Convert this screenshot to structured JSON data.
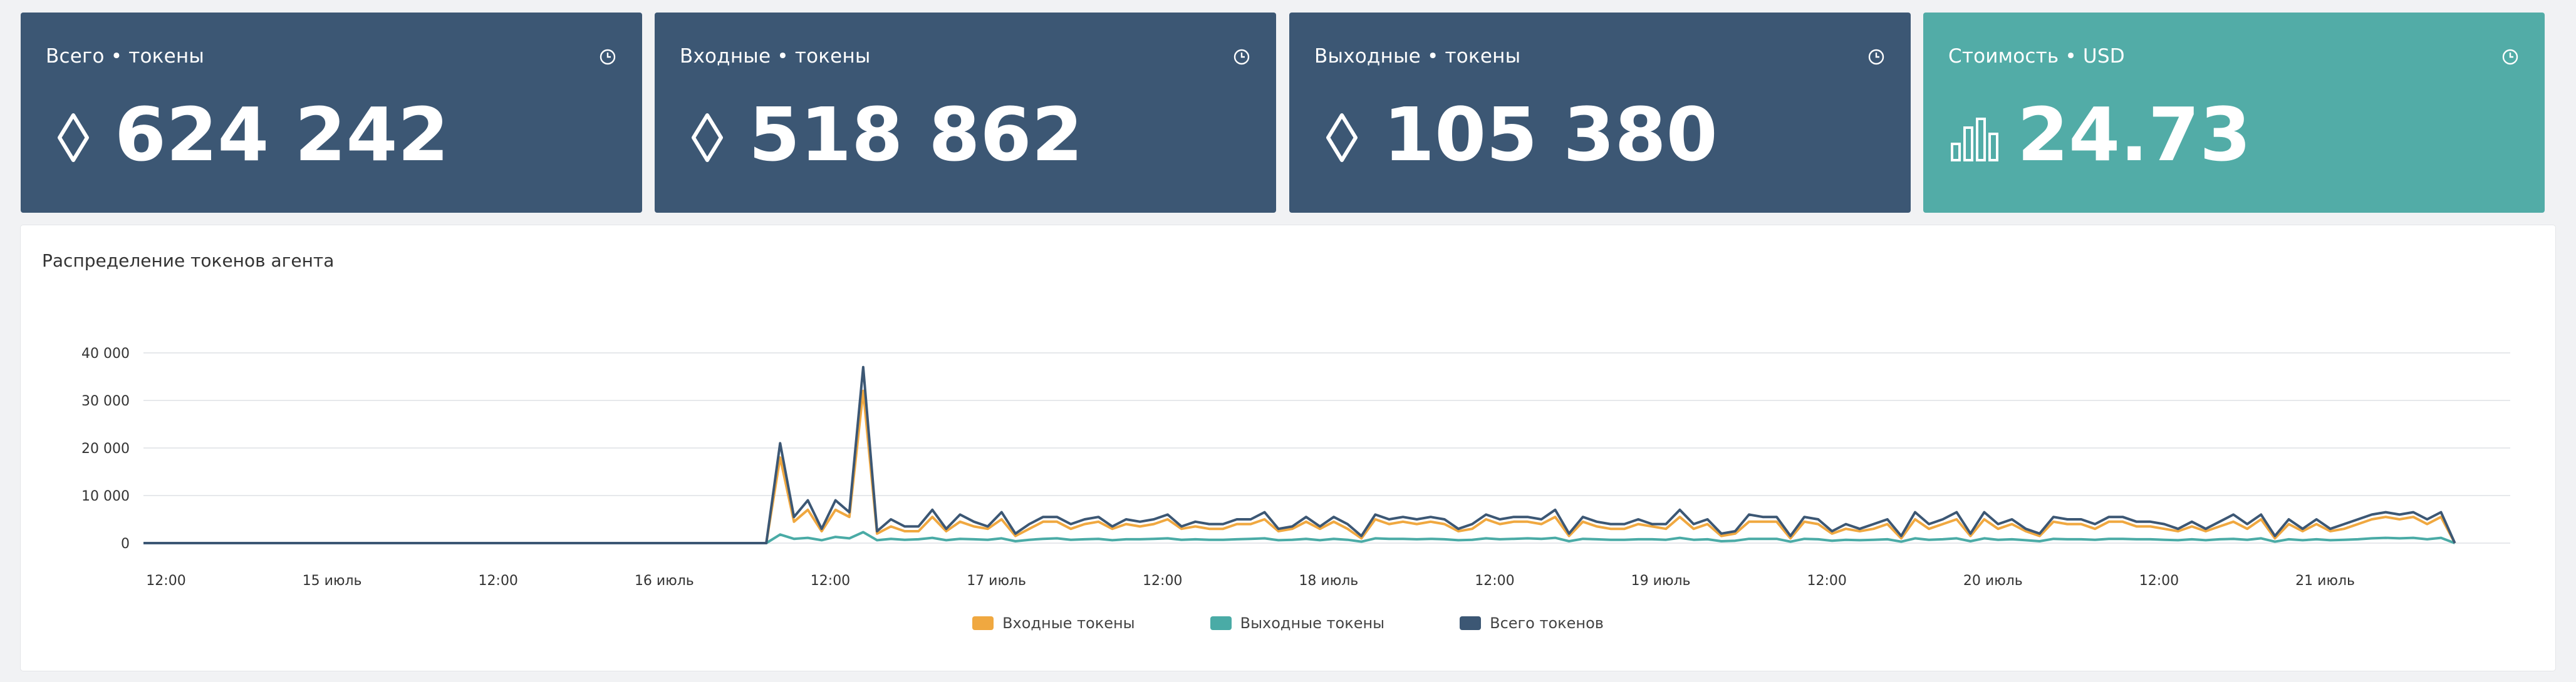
{
  "cards": [
    {
      "title": "Всего • токены",
      "value": "624 242",
      "icon": "diamond-icon",
      "theme": "dark"
    },
    {
      "title": "Входные • токены",
      "value": "518 862",
      "icon": "diamond-icon",
      "theme": "dark"
    },
    {
      "title": "Выходные • токены",
      "value": "105 380",
      "icon": "diamond-icon",
      "theme": "dark"
    },
    {
      "title": "Стоимость • USD",
      "value": "24.73",
      "icon": "bar-chart-icon",
      "theme": "teal"
    }
  ],
  "colors": {
    "card_dark": "#3c5774",
    "card_teal": "#52aca7",
    "input": "#f0a840",
    "output": "#4aaba6",
    "total": "#3c5774"
  },
  "chart_data": {
    "type": "line",
    "title": "Распределение токенов агента",
    "ylim": [
      0,
      40000
    ],
    "y_ticks": [
      "0",
      "10 000",
      "20 000",
      "30 000",
      "40 000"
    ],
    "x_ticks": [
      "12:00",
      "15 июль",
      "12:00",
      "16 июль",
      "12:00",
      "17 июль",
      "12:00",
      "18 июль",
      "12:00",
      "19 июль",
      "12:00",
      "20 июль",
      "12:00",
      "21 июль"
    ],
    "grid": true,
    "legend_position": "bottom",
    "x_hours": [
      0,
      45,
      46,
      47,
      48,
      49,
      50,
      51,
      52,
      53,
      54,
      55,
      56,
      57,
      58,
      59,
      60,
      61,
      62,
      63,
      64,
      65,
      66,
      67,
      68,
      69,
      70,
      71,
      72,
      73,
      74,
      75,
      76,
      77,
      78,
      79,
      80,
      81,
      82,
      83,
      84,
      85,
      86,
      87,
      88,
      89,
      90,
      91,
      92,
      93,
      94,
      95,
      96,
      97,
      98,
      99,
      100,
      101,
      102,
      103,
      104,
      105,
      106,
      107,
      108,
      109,
      110,
      111,
      112,
      113,
      114,
      115,
      116,
      117,
      118,
      119,
      120,
      121,
      122,
      123,
      124,
      125,
      126,
      127,
      128,
      129,
      130,
      131,
      132,
      133,
      134,
      135,
      136,
      137,
      138,
      139,
      140,
      141,
      142,
      143,
      144,
      145,
      146,
      147,
      148,
      149,
      150,
      151,
      152,
      153,
      154,
      155,
      156,
      157,
      158,
      159,
      160,
      161,
      162,
      163,
      164,
      165,
      166,
      167
    ],
    "series": [
      {
        "name": "Входные токены",
        "values": [
          0,
          0,
          18000,
          4500,
          7000,
          2500,
          7000,
          5500,
          32000,
          2000,
          3500,
          2500,
          2500,
          5500,
          2500,
          4500,
          3500,
          3000,
          5000,
          1500,
          3000,
          4500,
          4500,
          3000,
          4000,
          4500,
          3000,
          4000,
          3500,
          4000,
          5000,
          3000,
          3500,
          3000,
          3000,
          4000,
          4000,
          5000,
          2500,
          3000,
          4500,
          3000,
          4500,
          3000,
          1000,
          5000,
          4000,
          4500,
          4000,
          4500,
          4000,
          2500,
          3000,
          5000,
          4000,
          4500,
          4500,
          4000,
          5500,
          1500,
          4500,
          3500,
          3000,
          3000,
          4000,
          3500,
          3000,
          5500,
          3000,
          4000,
          1500,
          2000,
          4500,
          4500,
          4500,
          1000,
          4500,
          4000,
          2000,
          3000,
          2500,
          3000,
          4000,
          1000,
          5000,
          3000,
          4000,
          5000,
          1500,
          5000,
          3000,
          4000,
          2500,
          1500,
          4500,
          4000,
          4000,
          3000,
          4500,
          4500,
          3500,
          3500,
          3000,
          2500,
          3500,
          2500,
          3500,
          4500,
          3000,
          5000,
          1000,
          4000,
          2500,
          4000,
          2500,
          3000,
          4000,
          5000,
          5500,
          5000,
          5500,
          4000,
          5500,
          0
        ]
      },
      {
        "name": "Выходные токены",
        "values": [
          0,
          0,
          1800,
          900,
          1100,
          600,
          1300,
          1000,
          2300,
          600,
          900,
          700,
          800,
          1100,
          600,
          900,
          800,
          700,
          1000,
          400,
          700,
          900,
          1000,
          700,
          800,
          900,
          600,
          800,
          800,
          900,
          1000,
          700,
          800,
          700,
          700,
          800,
          900,
          1000,
          600,
          700,
          900,
          600,
          900,
          700,
          300,
          1000,
          900,
          900,
          800,
          900,
          800,
          600,
          700,
          1000,
          800,
          900,
          1000,
          900,
          1100,
          400,
          900,
          800,
          700,
          700,
          800,
          800,
          700,
          1100,
          700,
          800,
          400,
          500,
          900,
          900,
          900,
          300,
          900,
          800,
          500,
          700,
          600,
          700,
          800,
          300,
          1000,
          700,
          800,
          1000,
          400,
          1000,
          700,
          800,
          600,
          400,
          900,
          800,
          800,
          700,
          900,
          900,
          800,
          800,
          700,
          600,
          800,
          600,
          800,
          900,
          700,
          1000,
          300,
          800,
          600,
          800,
          600,
          700,
          800,
          1000,
          1100,
          1000,
          1100,
          800,
          1100,
          0
        ]
      },
      {
        "name": "Всего токенов",
        "values": [
          0,
          0,
          21000,
          5500,
          9000,
          3000,
          9000,
          6500,
          37000,
          2500,
          5000,
          3500,
          3500,
          7000,
          3000,
          6000,
          4500,
          3500,
          6500,
          2000,
          4000,
          5500,
          5500,
          4000,
          5000,
          5500,
          3500,
          5000,
          4500,
          5000,
          6000,
          3500,
          4500,
          4000,
          4000,
          5000,
          5000,
          6500,
          3000,
          3500,
          5500,
          3500,
          5500,
          4000,
          1500,
          6000,
          5000,
          5500,
          5000,
          5500,
          5000,
          3000,
          4000,
          6000,
          5000,
          5500,
          5500,
          5000,
          7000,
          2000,
          5500,
          4500,
          4000,
          4000,
          5000,
          4000,
          4000,
          7000,
          4000,
          5000,
          2000,
          2500,
          6000,
          5500,
          5500,
          1500,
          5500,
          5000,
          2500,
          4000,
          3000,
          4000,
          5000,
          1500,
          6500,
          4000,
          5000,
          6500,
          2000,
          6500,
          4000,
          5000,
          3000,
          2000,
          5500,
          5000,
          5000,
          4000,
          5500,
          5500,
          4500,
          4500,
          4000,
          3000,
          4500,
          3000,
          4500,
          6000,
          4000,
          6000,
          1500,
          5000,
          3000,
          5000,
          3000,
          4000,
          5000,
          6000,
          6500,
          6000,
          6500,
          5000,
          6500,
          0
        ]
      }
    ]
  },
  "legend": {
    "input": "Входные токены",
    "output": "Выходные токены",
    "total": "Всего токенов"
  }
}
